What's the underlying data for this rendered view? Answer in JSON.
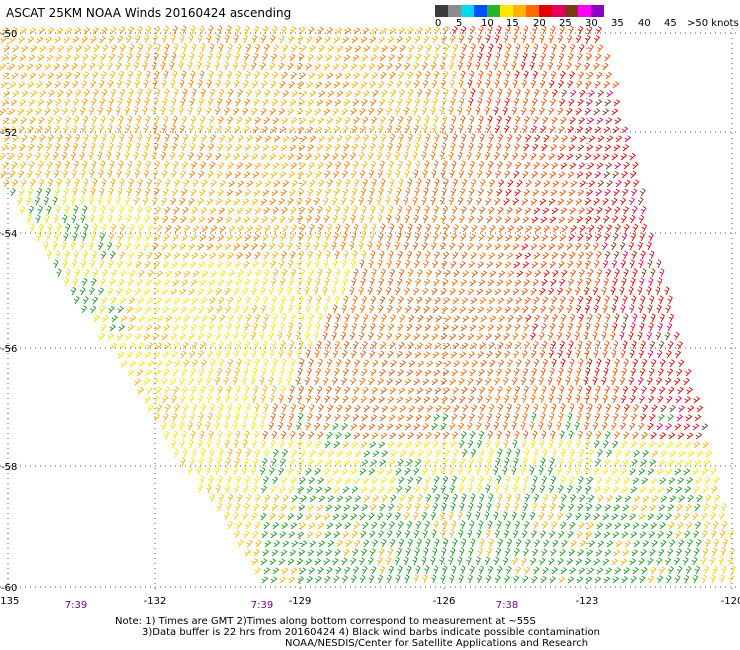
{
  "title": "ASCAT 25KM NOAA Winds 20160424 ascending",
  "colorbar": {
    "labels": [
      "0",
      "5",
      "10",
      "15",
      "20",
      "25",
      "30",
      "35",
      "40",
      "45",
      ">50 knots"
    ],
    "colors": [
      "#3c3c3c",
      "#8c8c8c",
      "#00d8f0",
      "#0050ff",
      "#28b428",
      "#ffe600",
      "#ffb400",
      "#ff6a00",
      "#e60000",
      "#e6005a",
      "#7a3c14",
      "#ff00ff",
      "#8c00c8"
    ]
  },
  "axes": {
    "lat_labels": [
      "-50",
      "-52",
      "-54",
      "-56",
      "-58",
      "-60"
    ],
    "lon_labels": [
      "-135",
      "-132",
      "-129",
      "-126",
      "-123",
      "-120"
    ],
    "time_labels": [
      "7:39",
      "7:39",
      "7:38"
    ]
  },
  "notes": {
    "line1": "Note: 1) Times are GMT 2)Times along bottom correspond to measurement at ~55S",
    "line2": "3)Data buffer is 22 hrs from 20160424 4) Black wind barbs indicate possible contamination",
    "line3": "NOAA/NESDIS/Center for Satellite Applications and Research"
  }
}
